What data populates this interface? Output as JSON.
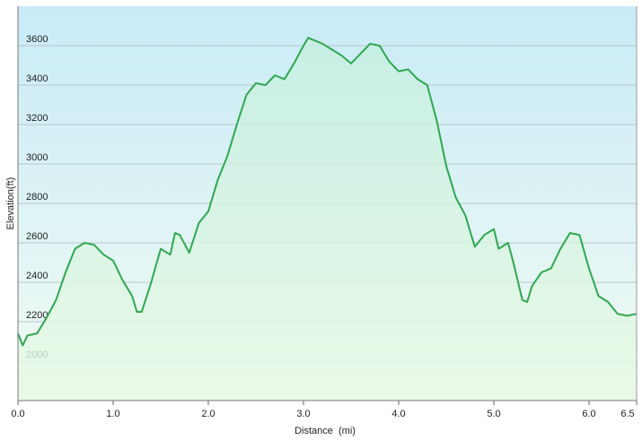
{
  "chart_data": {
    "type": "area",
    "xlabel": "Distance  (mi)",
    "ylabel": "Elevation(ft)",
    "x": [
      0,
      0.05,
      0.1,
      0.2,
      0.3,
      0.4,
      0.5,
      0.6,
      0.7,
      0.8,
      0.9,
      1.0,
      1.1,
      1.2,
      1.25,
      1.3,
      1.4,
      1.5,
      1.6,
      1.65,
      1.7,
      1.8,
      1.9,
      2.0,
      2.1,
      2.2,
      2.3,
      2.4,
      2.5,
      2.6,
      2.7,
      2.8,
      2.9,
      3.0,
      3.05,
      3.1,
      3.2,
      3.3,
      3.4,
      3.5,
      3.6,
      3.7,
      3.8,
      3.9,
      4.0,
      4.1,
      4.2,
      4.3,
      4.4,
      4.5,
      4.6,
      4.7,
      4.8,
      4.9,
      5.0,
      5.05,
      5.15,
      5.2,
      5.3,
      5.35,
      5.4,
      5.5,
      5.6,
      5.7,
      5.8,
      5.9,
      6.0,
      6.1,
      6.2,
      6.3,
      6.4,
      6.5
    ],
    "values": [
      2140,
      2080,
      2130,
      2140,
      2220,
      2310,
      2450,
      2570,
      2600,
      2590,
      2540,
      2510,
      2410,
      2330,
      2250,
      2250,
      2400,
      2570,
      2540,
      2650,
      2640,
      2550,
      2700,
      2760,
      2920,
      3040,
      3200,
      3350,
      3410,
      3400,
      3450,
      3430,
      3510,
      3600,
      3640,
      3630,
      3610,
      3580,
      3550,
      3510,
      3560,
      3610,
      3600,
      3520,
      3470,
      3480,
      3430,
      3400,
      3220,
      2990,
      2830,
      2740,
      2580,
      2640,
      2670,
      2570,
      2600,
      2510,
      2310,
      2300,
      2380,
      2450,
      2470,
      2570,
      2650,
      2640,
      2470,
      2330,
      2300,
      2240,
      2230,
      2240
    ],
    "color": "#2fa84f",
    "xlim": [
      0,
      6.5
    ],
    "ylim": [
      1800,
      3800
    ],
    "xticks": [
      {
        "value": 0,
        "label": "0.0"
      },
      {
        "value": 1,
        "label": "1.0"
      },
      {
        "value": 2,
        "label": "2.0"
      },
      {
        "value": 3,
        "label": "3.0"
      },
      {
        "value": 4,
        "label": "4.0"
      },
      {
        "value": 5,
        "label": "5.0"
      },
      {
        "value": 6,
        "label": "6.0"
      },
      6.5
    ],
    "yticks": [
      2000,
      2200,
      2400,
      2600,
      2800,
      3000,
      3200,
      3400,
      3600
    ],
    "grid": true
  }
}
